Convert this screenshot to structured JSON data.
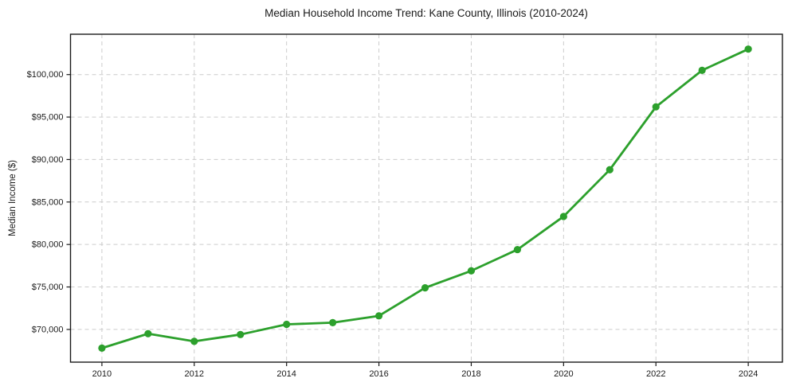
{
  "chart_data": {
    "type": "line",
    "title": "Median Household Income Trend: Kane County, Illinois (2010-2024)",
    "xlabel": "",
    "ylabel": "Median Income ($)",
    "x": [
      2010,
      2011,
      2012,
      2013,
      2014,
      2015,
      2016,
      2017,
      2018,
      2019,
      2020,
      2021,
      2022,
      2023,
      2024
    ],
    "values": [
      67800,
      69500,
      68600,
      69400,
      70600,
      70800,
      71600,
      74900,
      76900,
      79400,
      83300,
      88800,
      96200,
      100500,
      103000
    ],
    "xlim": [
      2009.32,
      2024.74
    ],
    "ylim": [
      66150,
      104750
    ],
    "xticks": [
      2010,
      2012,
      2014,
      2016,
      2018,
      2020,
      2022,
      2024
    ],
    "xtick_labels": [
      "2010",
      "2012",
      "2014",
      "2016",
      "2018",
      "2020",
      "2022",
      "2024"
    ],
    "yticks": [
      70000,
      75000,
      80000,
      85000,
      90000,
      95000,
      100000
    ],
    "ytick_labels": [
      "$70,000",
      "$75,000",
      "$80,000",
      "$85,000",
      "$90,000",
      "$95,000",
      "$100,000"
    ],
    "grid": true,
    "grid_style": "dashed",
    "legend": false,
    "marker": "circle",
    "line_color": "#2ca02c",
    "grid_color": "#cccccc",
    "axis_color": "#1a1a1a",
    "text_color": "#1a1a1a",
    "background_color": "#ffffff"
  }
}
